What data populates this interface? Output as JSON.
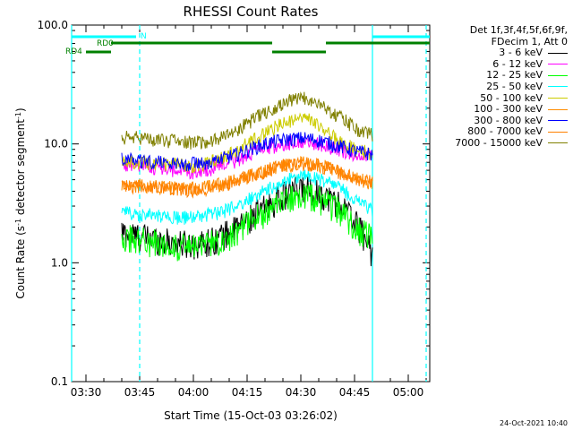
{
  "chart_data": {
    "type": "line",
    "title": "RHESSI Count Rates",
    "xlabel": "Start Time (15-Oct-03 03:26:02)",
    "ylabel_main": "Count Rate (s",
    "ylabel_sup1": "-1",
    "ylabel_mid": " detector segment",
    "ylabel_sup2": "-1",
    "ylabel_end": ")",
    "y_scale": "log",
    "ylim": [
      0.1,
      100.0
    ],
    "xlim_minutes": [
      0,
      100
    ],
    "x_ticks": [
      {
        "minute": 4,
        "label": "03:30"
      },
      {
        "minute": 19,
        "label": "03:45"
      },
      {
        "minute": 34,
        "label": "04:00"
      },
      {
        "minute": 49,
        "label": "04:15"
      },
      {
        "minute": 64,
        "label": "04:30"
      },
      {
        "minute": 79,
        "label": "04:45"
      },
      {
        "minute": 94,
        "label": "05:00"
      }
    ],
    "y_ticks": [
      {
        "value": 100.0,
        "label": "100.0"
      },
      {
        "value": 10.0,
        "label": "10.0"
      },
      {
        "value": 1.0,
        "label": "1.0"
      },
      {
        "value": 0.1,
        "label": "0.1"
      }
    ],
    "legend_header": [
      "Det 1f,3f,4f,5f,6f,9f,",
      "FDecim 1, Att 0"
    ],
    "data_window_minutes": [
      14,
      84
    ],
    "series": [
      {
        "name": "3 - 6 keV",
        "color": "#000000",
        "values": [
          1.8,
          1.7,
          1.6,
          1.5,
          1.45,
          1.5,
          1.7,
          2.0,
          2.6,
          3.2,
          4.0,
          4.3,
          3.8,
          3.2,
          2.2,
          1.2
        ]
      },
      {
        "name": "6 - 12 keV",
        "color": "#ff00ff",
        "values": [
          6.8,
          6.5,
          6.3,
          6.0,
          5.8,
          6.0,
          6.6,
          7.4,
          8.6,
          9.5,
          10.2,
          10.5,
          9.8,
          9.0,
          8.2,
          7.8
        ]
      },
      {
        "name": "12 - 25 keV",
        "color": "#00ff00",
        "values": [
          1.7,
          1.6,
          1.5,
          1.4,
          1.35,
          1.45,
          1.6,
          1.9,
          2.4,
          2.9,
          3.5,
          3.8,
          3.4,
          2.8,
          2.0,
          1.6
        ]
      },
      {
        "name": "25 - 50 keV",
        "color": "#00ffff",
        "values": [
          2.7,
          2.6,
          2.5,
          2.45,
          2.4,
          2.5,
          2.7,
          3.0,
          3.7,
          4.3,
          5.0,
          5.4,
          5.0,
          4.3,
          3.4,
          2.8
        ]
      },
      {
        "name": "50 - 100 keV",
        "color": "#cccc00",
        "values": [
          7.2,
          7.0,
          6.9,
          6.7,
          6.6,
          6.8,
          7.6,
          9.0,
          11.0,
          13.5,
          15.5,
          16.5,
          13.5,
          10.5,
          9.0,
          8.3
        ]
      },
      {
        "name": "100 - 300 keV",
        "color": "#ff8c00",
        "values": [
          4.6,
          4.5,
          4.4,
          4.3,
          4.2,
          4.3,
          4.6,
          5.0,
          5.6,
          6.2,
          6.7,
          7.0,
          6.6,
          5.8,
          5.1,
          4.7
        ]
      },
      {
        "name": "300 - 800 keV",
        "color": "#0000ff",
        "values": [
          7.5,
          7.3,
          7.1,
          6.9,
          6.8,
          7.0,
          7.5,
          8.3,
          9.4,
          10.4,
          11.0,
          11.2,
          10.6,
          9.6,
          8.7,
          8.2
        ]
      },
      {
        "name": "800 - 7000 keV",
        "color": "#ff8000",
        "values": [
          4.5,
          4.4,
          4.3,
          4.2,
          4.1,
          4.2,
          4.5,
          5.0,
          5.6,
          6.2,
          6.7,
          6.9,
          6.5,
          5.8,
          5.2,
          4.8
        ]
      },
      {
        "name": "7000 - 15000 keV",
        "color": "#808000",
        "values": [
          11.5,
          11.3,
          11.0,
          10.6,
          10.2,
          10.5,
          11.5,
          13.5,
          16.5,
          20.0,
          23.0,
          24.5,
          21.0,
          17.0,
          13.5,
          12.0
        ]
      }
    ],
    "annotations": {
      "n_label": "N",
      "rd0_label": "RD0",
      "rd4_label": "RD4"
    },
    "flag_bars": [
      {
        "name": "N",
        "color": "#00ffff",
        "segments": [
          [
            0,
            18
          ],
          [
            84,
            100
          ]
        ]
      },
      {
        "name": "RD0",
        "color": "#008000",
        "segments": [
          [
            11,
            56
          ],
          [
            71,
            100
          ]
        ]
      },
      {
        "name": "RD4",
        "color": "#008000",
        "segments": [
          [
            4,
            11
          ],
          [
            56,
            71
          ]
        ]
      }
    ],
    "vertical_markers": [
      {
        "minute": 0,
        "color": "#00ffff",
        "style": "solid"
      },
      {
        "minute": 19,
        "color": "#00ffff",
        "style": "dashed"
      },
      {
        "minute": 84,
        "color": "#00ffff",
        "style": "solid"
      },
      {
        "minute": 99,
        "color": "#00ffff",
        "style": "dashed"
      }
    ]
  },
  "footer_date": "24-Oct-2021 10:40"
}
